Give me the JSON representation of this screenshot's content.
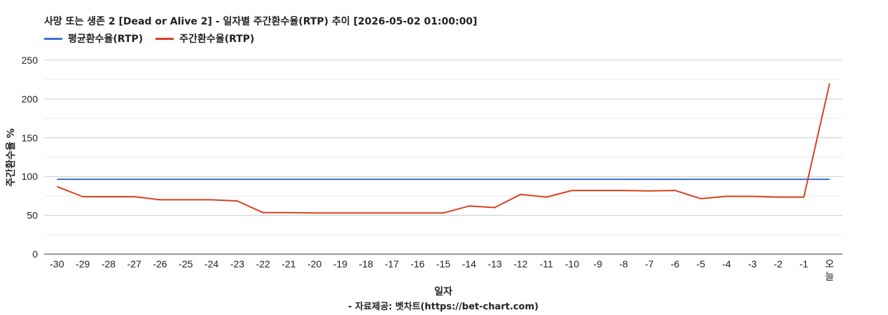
{
  "chart_data": {
    "type": "line",
    "title": "사망 또는 생존 2 [Dead or Alive 2] - 일자별 주간환수율(RTP) 추이 [2026-05-02 01:00:00]",
    "xlabel": "일자",
    "ylabel": "주간환수율 %",
    "source": "- 자료제공: 벳차트(https://bet-chart.com)",
    "categories": [
      "-30",
      "-29",
      "-28",
      "-27",
      "-26",
      "-25",
      "-24",
      "-23",
      "-22",
      "-21",
      "-20",
      "-19",
      "-18",
      "-17",
      "-16",
      "-15",
      "-14",
      "-13",
      "-12",
      "-11",
      "-10",
      "-9",
      "-8",
      "-7",
      "-6",
      "-5",
      "-4",
      "-3",
      "-2",
      "-1",
      "오늘"
    ],
    "ylim": [
      0,
      250
    ],
    "yticks": [
      0,
      50,
      100,
      150,
      200,
      250
    ],
    "grid": true,
    "legend_position": "top-left",
    "series": [
      {
        "name": "평균환수율(RTP)",
        "color": "#3a6fd8",
        "values": [
          96.5,
          96.5,
          96.5,
          96.5,
          96.5,
          96.5,
          96.5,
          96.5,
          96.5,
          96.5,
          96.5,
          96.5,
          96.5,
          96.5,
          96.5,
          96.5,
          96.5,
          96.5,
          96.5,
          96.5,
          96.5,
          96.5,
          96.5,
          96.5,
          96.5,
          96.5,
          96.5,
          96.5,
          96.5,
          96.5,
          96.5
        ]
      },
      {
        "name": "주간환수율(RTP)",
        "color": "#d9411e",
        "values": [
          87,
          74,
          74,
          74,
          70,
          70,
          70,
          68.5,
          53.5,
          53.5,
          53,
          53,
          53,
          53,
          53,
          53,
          62,
          60,
          77,
          73.5,
          82,
          82,
          82,
          81.5,
          82,
          71.5,
          74.5,
          74.5,
          73.5,
          73.5,
          220
        ]
      }
    ]
  }
}
